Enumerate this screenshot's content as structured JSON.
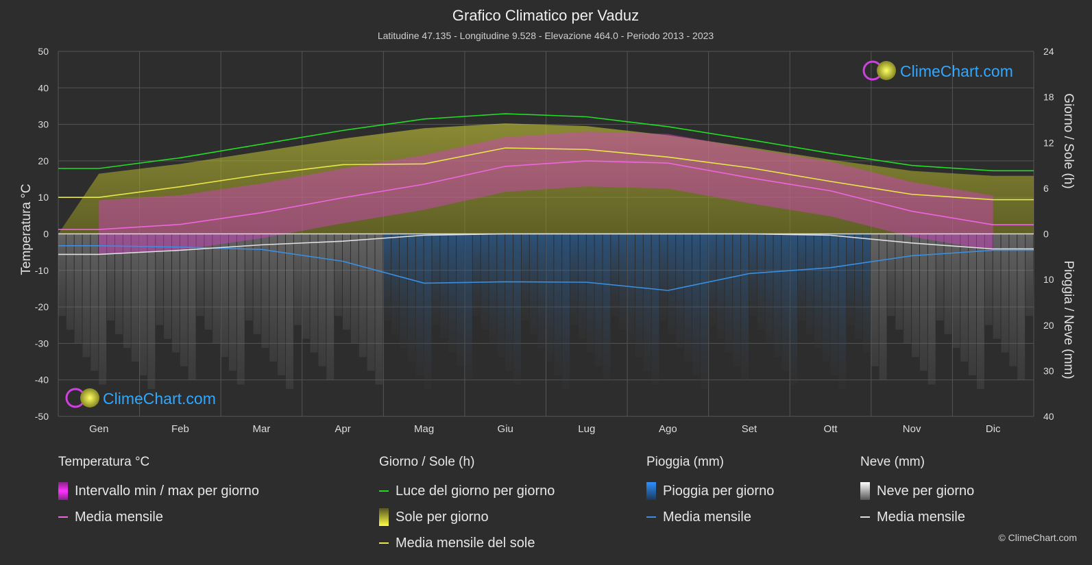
{
  "header": {
    "title": "Grafico Climatico per Vaduz",
    "subtitle": "Latitudine 47.135 - Longitudine 9.528 - Elevazione 464.0 - Periodo 2013 - 2023"
  },
  "brand": {
    "name": "ClimeChart.com",
    "copyright": "© ClimeChart.com"
  },
  "axes": {
    "left_label": "Temperatura °C",
    "right_top_label": "Giorno / Sole (h)",
    "right_bottom_label": "Pioggia / Neve (mm)",
    "left_ticks": [
      "50",
      "40",
      "30",
      "20",
      "10",
      "0",
      "-10",
      "-20",
      "-30",
      "-40",
      "-50"
    ],
    "right_top_ticks": [
      "24",
      "18",
      "12",
      "6",
      "0"
    ],
    "right_bottom_ticks": [
      "10",
      "20",
      "30",
      "40"
    ]
  },
  "chart_data": {
    "type": "line",
    "categories": [
      "Gen",
      "Feb",
      "Mar",
      "Apr",
      "Mag",
      "Giu",
      "Lug",
      "Ago",
      "Set",
      "Ott",
      "Nov",
      "Dic"
    ],
    "temp_ylim": [
      -50,
      50
    ],
    "sun_ylim": [
      0,
      24
    ],
    "precip_ylim": [
      0,
      40
    ],
    "grid": true,
    "series": [
      {
        "name": "Luce del giorno per giorno",
        "axis": "sun",
        "color": "#22dd22",
        "values": [
          8.6,
          10.0,
          11.8,
          13.6,
          15.1,
          15.8,
          15.4,
          14.1,
          12.4,
          10.6,
          9.0,
          8.3
        ]
      },
      {
        "name": "Media mensile del sole",
        "axis": "sun",
        "color": "#e8e84a",
        "values": [
          4.8,
          6.2,
          7.8,
          9.1,
          9.2,
          11.3,
          11.1,
          10.1,
          8.7,
          6.9,
          5.2,
          4.5
        ]
      },
      {
        "name": "Media mensile",
        "group": "temperature",
        "axis": "temp",
        "color": "#ee66dd",
        "values": [
          1.2,
          2.6,
          5.8,
          9.9,
          13.6,
          18.5,
          20.0,
          19.4,
          15.4,
          11.8,
          6.2,
          2.5
        ]
      },
      {
        "name": "Media mensile",
        "group": "rain",
        "axis": "precip",
        "color": "#3a8fe0",
        "values": [
          2.6,
          2.9,
          3.4,
          6.0,
          10.8,
          10.5,
          10.6,
          12.4,
          8.7,
          7.4,
          4.8,
          3.6
        ]
      },
      {
        "name": "Media mensile",
        "group": "snow",
        "axis": "precip",
        "color": "#e0e0e0",
        "values": [
          4.5,
          3.6,
          2.4,
          1.6,
          0.3,
          0.0,
          0.0,
          0.0,
          0.0,
          0.3,
          2.0,
          3.3
        ]
      }
    ]
  },
  "legend": {
    "temperature": {
      "heading": "Temperatura °C",
      "items": [
        "Intervallo min / max per giorno",
        "Media mensile"
      ]
    },
    "sun": {
      "heading": "Giorno / Sole (h)",
      "items": [
        "Luce del giorno per giorno",
        "Sole per giorno",
        "Media mensile del sole"
      ]
    },
    "rain": {
      "heading": "Pioggia (mm)",
      "items": [
        "Pioggia per giorno",
        "Media mensile"
      ]
    },
    "snow": {
      "heading": "Neve (mm)",
      "items": [
        "Neve per giorno",
        "Media mensile"
      ]
    }
  },
  "colors": {
    "background": "#2d2d2d",
    "daylight": "#22dd22",
    "sun": "#e8e84a",
    "temp_range": "#e040e0",
    "temp_mean": "#ee66dd",
    "rain": "#3a8fe0",
    "snow": "#e0e0e0"
  }
}
